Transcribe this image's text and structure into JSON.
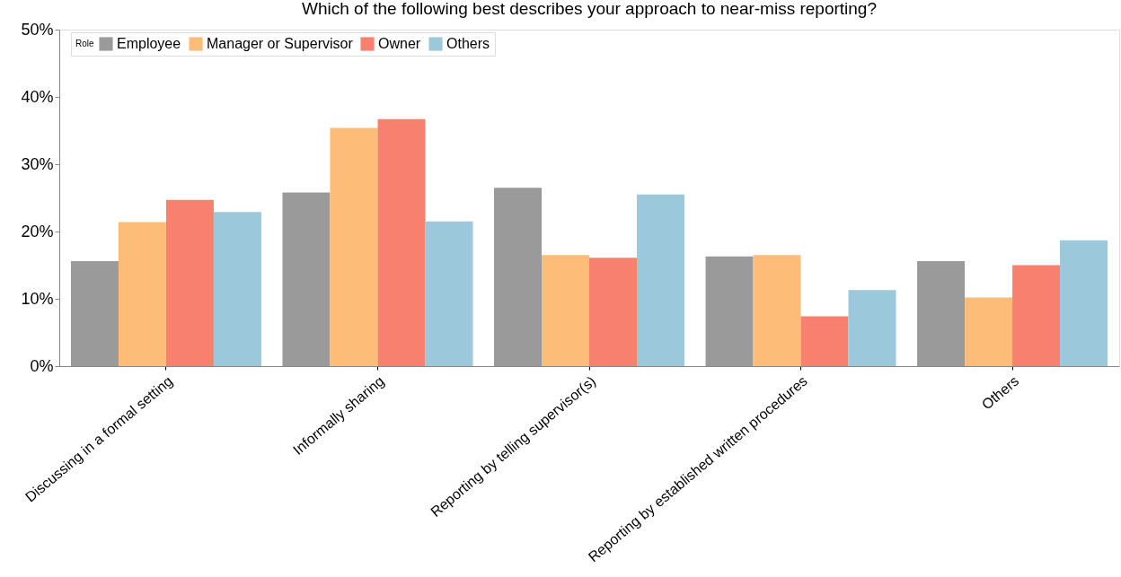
{
  "chart_data": {
    "type": "bar",
    "title": "Which of the following best describes your approach to near-miss reporting?",
    "legend_title": "Role",
    "legend": "top left",
    "grid": false,
    "categories": [
      "Discussing in a formal setting",
      "Informally sharing",
      "Reporting by telling supervisor(s)",
      "Reporting by established written procedures",
      "Others"
    ],
    "series": [
      {
        "name": "Employee",
        "color": "#9a9a9a",
        "values": [
          15.6,
          25.8,
          26.5,
          16.3,
          15.6
        ]
      },
      {
        "name": "Manager or Supervisor",
        "color": "#febc79",
        "values": [
          21.4,
          35.4,
          16.5,
          16.5,
          10.2
        ]
      },
      {
        "name": "Owner",
        "color": "#f8806f",
        "values": [
          24.7,
          36.7,
          16.1,
          7.4,
          15.0
        ]
      },
      {
        "name": "Others",
        "color": "#9bc8da",
        "values": [
          22.9,
          21.5,
          25.5,
          11.3,
          18.7
        ]
      }
    ],
    "ylim": [
      0,
      50
    ],
    "yticks": [
      {
        "value": 0,
        "label": "0%"
      },
      {
        "value": 10,
        "label": "10%"
      },
      {
        "value": 20,
        "label": "20%"
      },
      {
        "value": 30,
        "label": "30%"
      },
      {
        "value": 40,
        "label": "40%"
      },
      {
        "value": 50,
        "label": "50%"
      }
    ]
  }
}
